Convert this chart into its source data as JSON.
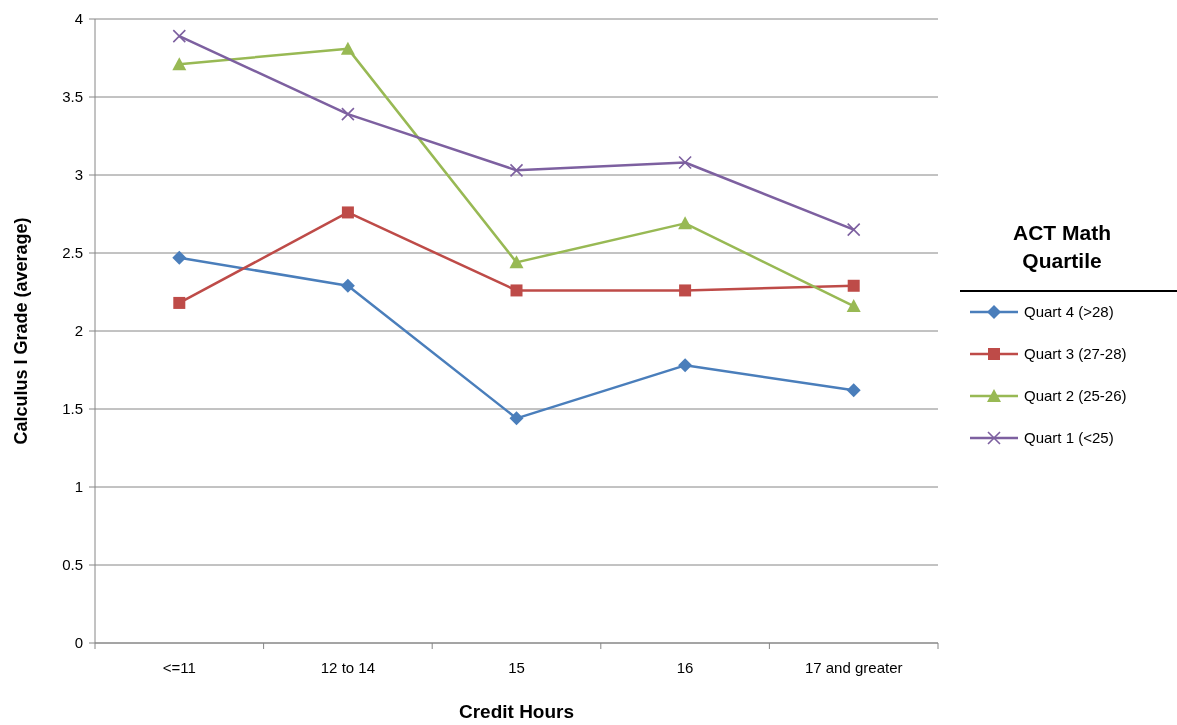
{
  "chart_data": {
    "type": "line",
    "xlabel": "Credit Hours",
    "ylabel": "Calculus I Grade (average)",
    "legend_title": "ACT Math Quartile",
    "categories": [
      "<=11",
      "12 to 14",
      "15",
      "16",
      "17 and greater"
    ],
    "ylim": [
      0,
      4
    ],
    "yticks": [
      0,
      0.5,
      1,
      1.5,
      2,
      2.5,
      3,
      3.5,
      4
    ],
    "grid": "y",
    "legend": "right",
    "line_style": "solid",
    "series": [
      {
        "name": "Quart 4 (>28)",
        "color": "#4a7ebb",
        "marker": "diamond",
        "values": [
          2.47,
          2.29,
          1.44,
          1.78,
          1.62
        ]
      },
      {
        "name": "Quart 3 (27-28)",
        "color": "#be4b48",
        "marker": "square",
        "values": [
          2.18,
          2.76,
          2.26,
          2.26,
          2.29
        ]
      },
      {
        "name": "Quart 2 (25-26)",
        "color": "#98b954",
        "marker": "triangle",
        "values": [
          3.71,
          3.81,
          2.44,
          2.69,
          2.16
        ]
      },
      {
        "name": "Quart 1 (<25)",
        "color": "#7d60a0",
        "marker": "cross",
        "values": [
          3.89,
          3.39,
          3.03,
          3.08,
          2.65
        ]
      }
    ]
  }
}
